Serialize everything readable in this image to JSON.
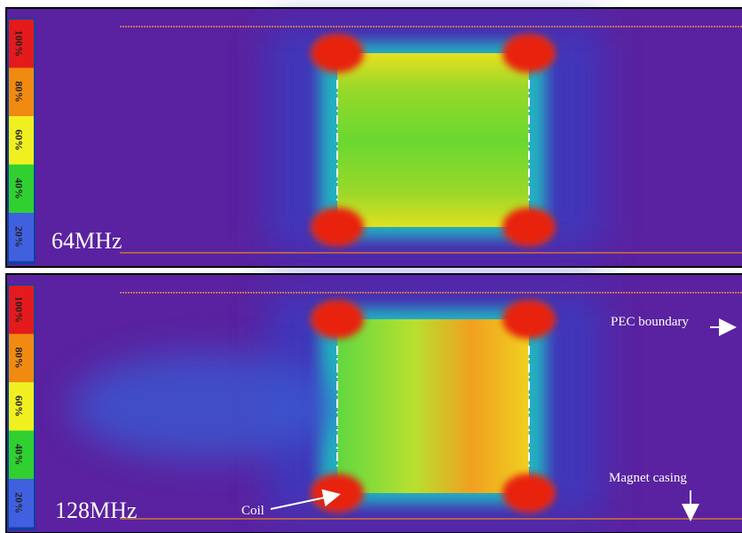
{
  "colorbar_labels": [
    "100%",
    "80%",
    "60%",
    "40%",
    "20%"
  ],
  "panels": [
    {
      "label": "64MHz"
    },
    {
      "label": "128MHz"
    }
  ],
  "annotations": {
    "pec": "PEC boundary",
    "coil": "Coil",
    "casing": "Magnet casing"
  }
}
